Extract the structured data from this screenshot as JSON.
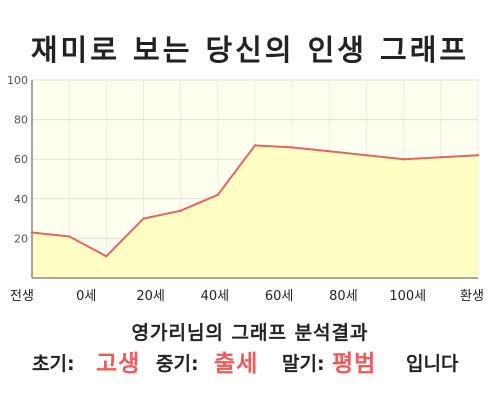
{
  "title": "재미로 보는 당신의 인생 그래프",
  "chart_data": {
    "type": "area",
    "title": "재미로 보는 당신의 인생 그래프",
    "x": [
      -10,
      0,
      10,
      20,
      30,
      40,
      50,
      60,
      70,
      80,
      90,
      100,
      110
    ],
    "values": [
      23,
      21,
      11,
      30,
      34,
      42,
      67,
      66,
      64,
      62,
      60,
      61,
      62
    ],
    "x_tick_labels": [
      "전생",
      "0세",
      "20세",
      "40세",
      "60세",
      "80세",
      "100세",
      "환생"
    ],
    "ylim": [
      0,
      100
    ],
    "y_ticks": [
      100,
      80,
      60,
      40,
      20
    ],
    "grid": true,
    "legend": "none",
    "colors": {
      "line": "#e06666",
      "fill": "#ffffc4",
      "grid": "#e0e0d8",
      "axis": "#888888",
      "tick_text": "#555555"
    }
  },
  "result": {
    "title": "영가리님의 그래프 분석결과",
    "early_label": "초기:",
    "early_value": "고생",
    "middle_label": "중기:",
    "middle_value": "출세",
    "late_label": "말기:",
    "late_value": "평범",
    "ending": "입니다",
    "highlight_color": "#f05a5a"
  }
}
